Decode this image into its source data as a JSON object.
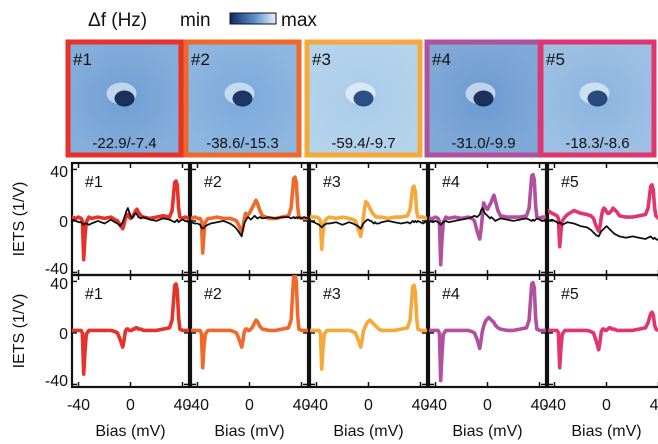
{
  "colorbar": {
    "label": "Δf (Hz)",
    "min_label": "min",
    "max_label": "max",
    "dark_color": "#0b2a66",
    "light_color": "#e9f1fb"
  },
  "panels": [
    {
      "id": "#1",
      "range": "-22.9/-7.4",
      "color": "#e63228"
    },
    {
      "id": "#2",
      "range": "-38.6/-15.3",
      "color": "#ef6a2a"
    },
    {
      "id": "#3",
      "range": "-59.4/-9.7",
      "color": "#f4a93a"
    },
    {
      "id": "#4",
      "range": "-31.0/-9.9",
      "color": "#b0509e"
    },
    {
      "id": "#5",
      "range": "-18.3/-8.6",
      "color": "#e2356e"
    }
  ],
  "chart_data": {
    "type": "line",
    "xlabel": "Bias (mV)",
    "ylabel": "IETS (1/V)",
    "xlim": [
      -45,
      45
    ],
    "ylim": [
      -42,
      45
    ],
    "xticks": [
      -40,
      0,
      40
    ],
    "yticks": [
      -40,
      0,
      40
    ],
    "x": [
      -45,
      -42,
      -40,
      -38,
      -37,
      -36,
      -35,
      -34,
      -32,
      -30,
      -25,
      -20,
      -15,
      -12,
      -10,
      -8,
      -6,
      -5,
      -4,
      -3,
      -2,
      -1,
      0,
      1,
      2,
      3,
      4,
      5,
      6,
      8,
      10,
      15,
      20,
      25,
      30,
      32,
      34,
      35,
      36,
      37,
      38,
      40,
      42,
      45
    ],
    "rows": [
      {
        "name": "top",
        "series": [
          {
            "panel": "#1",
            "values": [
              3,
              2,
              3,
              2,
              0,
              -30,
              -12,
              -1,
              3,
              2,
              3,
              2,
              3,
              1,
              0,
              -3,
              -6,
              -3,
              2,
              4,
              5,
              3,
              2,
              3,
              4,
              6,
              8,
              9,
              7,
              4,
              3,
              2,
              3,
              4,
              3,
              8,
              30,
              31,
              28,
              10,
              3,
              2,
              3,
              2
            ]
          },
          {
            "panel": "#2",
            "values": [
              2,
              3,
              2,
              2,
              0,
              -25,
              -10,
              -1,
              2,
              2,
              3,
              2,
              2,
              1,
              0,
              -4,
              -9,
              -5,
              2,
              6,
              4,
              5,
              6,
              8,
              10,
              12,
              14,
              16,
              14,
              8,
              4,
              2,
              2,
              3,
              4,
              10,
              33,
              34,
              30,
              12,
              3,
              2,
              2,
              2
            ]
          },
          {
            "panel": "#3",
            "values": [
              3,
              3,
              3,
              2,
              0,
              -22,
              -9,
              -1,
              2,
              3,
              2,
              3,
              2,
              1,
              0,
              -6,
              -12,
              -6,
              2,
              10,
              15,
              14,
              12,
              10,
              8,
              6,
              5,
              4,
              3,
              3,
              3,
              2,
              3,
              3,
              4,
              9,
              26,
              27,
              23,
              8,
              3,
              3,
              3,
              2
            ]
          },
          {
            "panel": "#4",
            "values": [
              2,
              2,
              3,
              2,
              0,
              -34,
              -14,
              -1,
              3,
              2,
              3,
              2,
              3,
              2,
              0,
              -8,
              -14,
              -7,
              3,
              14,
              12,
              10,
              9,
              11,
              13,
              15,
              18,
              20,
              16,
              8,
              4,
              3,
              3,
              3,
              4,
              10,
              35,
              36,
              32,
              12,
              3,
              2,
              3,
              3
            ]
          },
          {
            "panel": "#5",
            "values": [
              8,
              6,
              5,
              4,
              2,
              -20,
              -8,
              0,
              3,
              5,
              8,
              6,
              5,
              4,
              2,
              -4,
              -8,
              -4,
              3,
              8,
              10,
              9,
              7,
              6,
              6,
              7,
              8,
              10,
              9,
              7,
              4,
              3,
              3,
              4,
              5,
              10,
              27,
              28,
              24,
              10,
              4,
              2,
              0,
              -2
            ]
          },
          {
            "panel": "#1",
            "name": "reference",
            "values": [
              1,
              0,
              -1,
              -1,
              -2,
              -3,
              -2,
              -2,
              -3,
              -2,
              0,
              -2,
              1,
              -1,
              -2,
              -4,
              -1,
              2,
              5,
              8,
              10,
              7,
              4,
              2,
              3,
              5,
              6,
              5,
              3,
              2,
              3,
              1,
              0,
              2,
              1,
              0,
              -1,
              0,
              1,
              -1,
              0,
              1,
              0,
              -1
            ]
          },
          {
            "panel": "#2",
            "name": "reference",
            "values": [
              -1,
              -2,
              -2,
              -3,
              -5,
              -6,
              -5,
              -4,
              -3,
              -2,
              -1,
              0,
              -2,
              -4,
              -6,
              -9,
              -12,
              -6,
              -2,
              0,
              2,
              3,
              2,
              1,
              2,
              3,
              4,
              3,
              2,
              3,
              2,
              3,
              2,
              3,
              3,
              2,
              3,
              2,
              3,
              2,
              3,
              2,
              3,
              2
            ]
          },
          {
            "panel": "#3",
            "name": "reference",
            "values": [
              0,
              -1,
              -2,
              -3,
              -4,
              -5,
              -4,
              -3,
              -2,
              -2,
              -1,
              -3,
              -1,
              -2,
              -3,
              -4,
              -6,
              -4,
              -2,
              -1,
              0,
              1,
              1,
              0,
              0,
              -1,
              -2,
              -1,
              -2,
              -2,
              -1,
              0,
              -1,
              -2,
              -1,
              -2,
              0,
              -1,
              0,
              -1,
              0,
              -1,
              -2,
              0
            ]
          },
          {
            "panel": "#4",
            "name": "reference",
            "values": [
              0,
              -1,
              0,
              -1,
              -2,
              -3,
              -2,
              -1,
              0,
              -1,
              0,
              1,
              2,
              3,
              4,
              3,
              5,
              8,
              10,
              8,
              6,
              5,
              4,
              3,
              2,
              3,
              2,
              1,
              0,
              1,
              2,
              1,
              0,
              1,
              2,
              1,
              0,
              1,
              0,
              1,
              2,
              1,
              0,
              1
            ]
          },
          {
            "panel": "#5",
            "name": "reference",
            "values": [
              0,
              1,
              0,
              -1,
              -2,
              -1,
              -2,
              -3,
              -2,
              -1,
              -2,
              -4,
              -5,
              -7,
              -9,
              -11,
              -12,
              -10,
              -8,
              -7,
              -6,
              -5,
              -4,
              -5,
              -6,
              -7,
              -8,
              -9,
              -10,
              -11,
              -12,
              -13,
              -12,
              -13,
              -14,
              -13,
              -12,
              -13,
              -14,
              -13,
              -14,
              -15,
              -14,
              -16
            ]
          }
        ]
      },
      {
        "name": "bottom",
        "series": [
          {
            "panel": "#1",
            "values": [
              2,
              2,
              2,
              2,
              0,
              -32,
              -14,
              -1,
              2,
              2,
              2,
              2,
              2,
              1,
              0,
              -5,
              -11,
              -6,
              1,
              3,
              3,
              2,
              2,
              2,
              3,
              3,
              4,
              4,
              3,
              3,
              2,
              2,
              2,
              3,
              4,
              10,
              37,
              38,
              33,
              12,
              3,
              2,
              2,
              2
            ]
          },
          {
            "panel": "#2",
            "values": [
              2,
              2,
              2,
              2,
              0,
              -27,
              -11,
              -1,
              2,
              2,
              2,
              2,
              2,
              1,
              0,
              -5,
              -11,
              -6,
              1,
              3,
              3,
              2,
              2,
              3,
              4,
              6,
              8,
              10,
              9,
              5,
              3,
              2,
              2,
              3,
              4,
              10,
              44,
              45,
              40,
              14,
              3,
              2,
              2,
              2
            ]
          },
          {
            "panel": "#3",
            "values": [
              2,
              2,
              2,
              2,
              0,
              -28,
              -12,
              -1,
              2,
              2,
              2,
              2,
              2,
              1,
              0,
              -5,
              -11,
              -6,
              1,
              4,
              6,
              8,
              9,
              10,
              9,
              8,
              7,
              6,
              5,
              3,
              2,
              2,
              2,
              3,
              4,
              10,
              36,
              37,
              32,
              12,
              3,
              2,
              2,
              2
            ]
          },
          {
            "panel": "#4",
            "values": [
              2,
              2,
              2,
              2,
              0,
              -37,
              -16,
              -1,
              2,
              2,
              2,
              2,
              2,
              1,
              0,
              -5,
              -12,
              -6,
              1,
              5,
              8,
              10,
              11,
              12,
              11,
              10,
              9,
              8,
              6,
              4,
              3,
              2,
              2,
              3,
              4,
              10,
              38,
              39,
              35,
              12,
              3,
              2,
              2,
              2
            ]
          },
          {
            "panel": "#5",
            "values": [
              2,
              2,
              2,
              2,
              0,
              -27,
              -11,
              -1,
              2,
              2,
              2,
              2,
              2,
              1,
              0,
              -6,
              -13,
              -7,
              1,
              3,
              3,
              2,
              2,
              3,
              4,
              4,
              3,
              3,
              3,
              2,
              2,
              2,
              2,
              3,
              4,
              8,
              15,
              16,
              14,
              6,
              3,
              2,
              2,
              2
            ]
          }
        ]
      }
    ]
  }
}
